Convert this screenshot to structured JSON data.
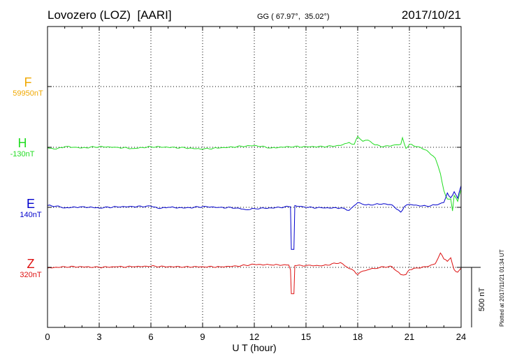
{
  "header": {
    "title": "Lovozero (LOZ)  [AARI]",
    "coords": "GG ( 67.97°,  35.02°)",
    "date": "2017/10/21"
  },
  "plotted_note": "Plotted at 2017/11/21 01:34 UT",
  "chart_data": {
    "type": "line",
    "xlabel": "U T (hour)",
    "xlim": [
      0,
      24
    ],
    "x_ticks": [
      "0",
      "3",
      "6",
      "9",
      "12",
      "15",
      "18",
      "21",
      "24"
    ],
    "scale_bar": "500 nT",
    "grid": true,
    "series": [
      {
        "name": "F",
        "baseline_label": "59950nT",
        "color": "#f0a800",
        "points": []
      },
      {
        "name": "H",
        "baseline_label": "-130nT",
        "color": "#22dd22",
        "points": [
          [
            0,
            -5
          ],
          [
            0.5,
            -15
          ],
          [
            1,
            5
          ],
          [
            1.5,
            0
          ],
          [
            2,
            -5
          ],
          [
            3,
            5
          ],
          [
            4,
            0
          ],
          [
            5,
            -10
          ],
          [
            6,
            5
          ],
          [
            7,
            0
          ],
          [
            8,
            -5
          ],
          [
            9,
            -15
          ],
          [
            10,
            -5
          ],
          [
            11,
            5
          ],
          [
            12,
            15
          ],
          [
            13,
            -5
          ],
          [
            14,
            5
          ],
          [
            15,
            5
          ],
          [
            16,
            5
          ],
          [
            17,
            15
          ],
          [
            17.5,
            40
          ],
          [
            17.8,
            25
          ],
          [
            18,
            90
          ],
          [
            18.3,
            50
          ],
          [
            18.6,
            60
          ],
          [
            19,
            20
          ],
          [
            19.5,
            5
          ],
          [
            20,
            15
          ],
          [
            20.5,
            25
          ],
          [
            20.6,
            80
          ],
          [
            20.8,
            -10
          ],
          [
            21,
            25
          ],
          [
            21.5,
            5
          ],
          [
            22,
            -25
          ],
          [
            22.5,
            -90
          ],
          [
            22.8,
            -220
          ],
          [
            23,
            -360
          ],
          [
            23.2,
            -430
          ],
          [
            23.4,
            -430
          ],
          [
            23.5,
            -530
          ],
          [
            23.6,
            -400
          ],
          [
            23.8,
            -450
          ],
          [
            24,
            -350
          ]
        ]
      },
      {
        "name": "E",
        "baseline_label": "140nT",
        "color": "#0000cc",
        "points": [
          [
            0,
            15
          ],
          [
            0.5,
            10
          ],
          [
            1,
            -5
          ],
          [
            2,
            5
          ],
          [
            3,
            -5
          ],
          [
            4,
            5
          ],
          [
            5,
            5
          ],
          [
            6,
            10
          ],
          [
            6.5,
            -10
          ],
          [
            7,
            0
          ],
          [
            8,
            -5
          ],
          [
            9,
            5
          ],
          [
            10,
            0
          ],
          [
            11,
            -5
          ],
          [
            11.5,
            -20
          ],
          [
            12,
            -10
          ],
          [
            13,
            -5
          ],
          [
            14,
            5
          ],
          [
            14.1,
            5
          ],
          [
            14.15,
            -350
          ],
          [
            14.3,
            -350
          ],
          [
            14.35,
            15
          ],
          [
            15,
            0
          ],
          [
            16,
            -5
          ],
          [
            17,
            -5
          ],
          [
            17.5,
            -25
          ],
          [
            17.8,
            15
          ],
          [
            18,
            40
          ],
          [
            18.5,
            20
          ],
          [
            19,
            25
          ],
          [
            19.5,
            30
          ],
          [
            20,
            20
          ],
          [
            20.5,
            -40
          ],
          [
            20.7,
            5
          ],
          [
            21,
            25
          ],
          [
            21.5,
            15
          ],
          [
            22,
            10
          ],
          [
            22.5,
            20
          ],
          [
            23,
            40
          ],
          [
            23.2,
            120
          ],
          [
            23.4,
            80
          ],
          [
            23.6,
            130
          ],
          [
            23.8,
            75
          ],
          [
            24,
            180
          ]
        ]
      },
      {
        "name": "Z",
        "baseline_label": "320nT",
        "color": "#dd1111",
        "points": [
          [
            0,
            -5
          ],
          [
            1,
            5
          ],
          [
            2,
            5
          ],
          [
            3,
            0
          ],
          [
            4,
            5
          ],
          [
            5,
            5
          ],
          [
            6,
            10
          ],
          [
            7,
            5
          ],
          [
            8,
            5
          ],
          [
            9,
            5
          ],
          [
            10,
            5
          ],
          [
            11,
            10
          ],
          [
            12,
            25
          ],
          [
            13,
            20
          ],
          [
            14,
            20
          ],
          [
            14.1,
            -20
          ],
          [
            14.15,
            -220
          ],
          [
            14.3,
            -220
          ],
          [
            14.35,
            15
          ],
          [
            15,
            15
          ],
          [
            16,
            15
          ],
          [
            17,
            40
          ],
          [
            17.5,
            -10
          ],
          [
            17.8,
            -30
          ],
          [
            18,
            -60
          ],
          [
            18.3,
            -30
          ],
          [
            18.7,
            -15
          ],
          [
            19,
            -10
          ],
          [
            19.5,
            5
          ],
          [
            20,
            5
          ],
          [
            20.5,
            -60
          ],
          [
            20.8,
            -60
          ],
          [
            21,
            -20
          ],
          [
            21.5,
            -5
          ],
          [
            22,
            5
          ],
          [
            22.5,
            30
          ],
          [
            22.8,
            120
          ],
          [
            23,
            70
          ],
          [
            23.2,
            50
          ],
          [
            23.4,
            80
          ],
          [
            23.6,
            -20
          ],
          [
            23.8,
            -40
          ],
          [
            24,
            -5
          ]
        ]
      }
    ]
  }
}
